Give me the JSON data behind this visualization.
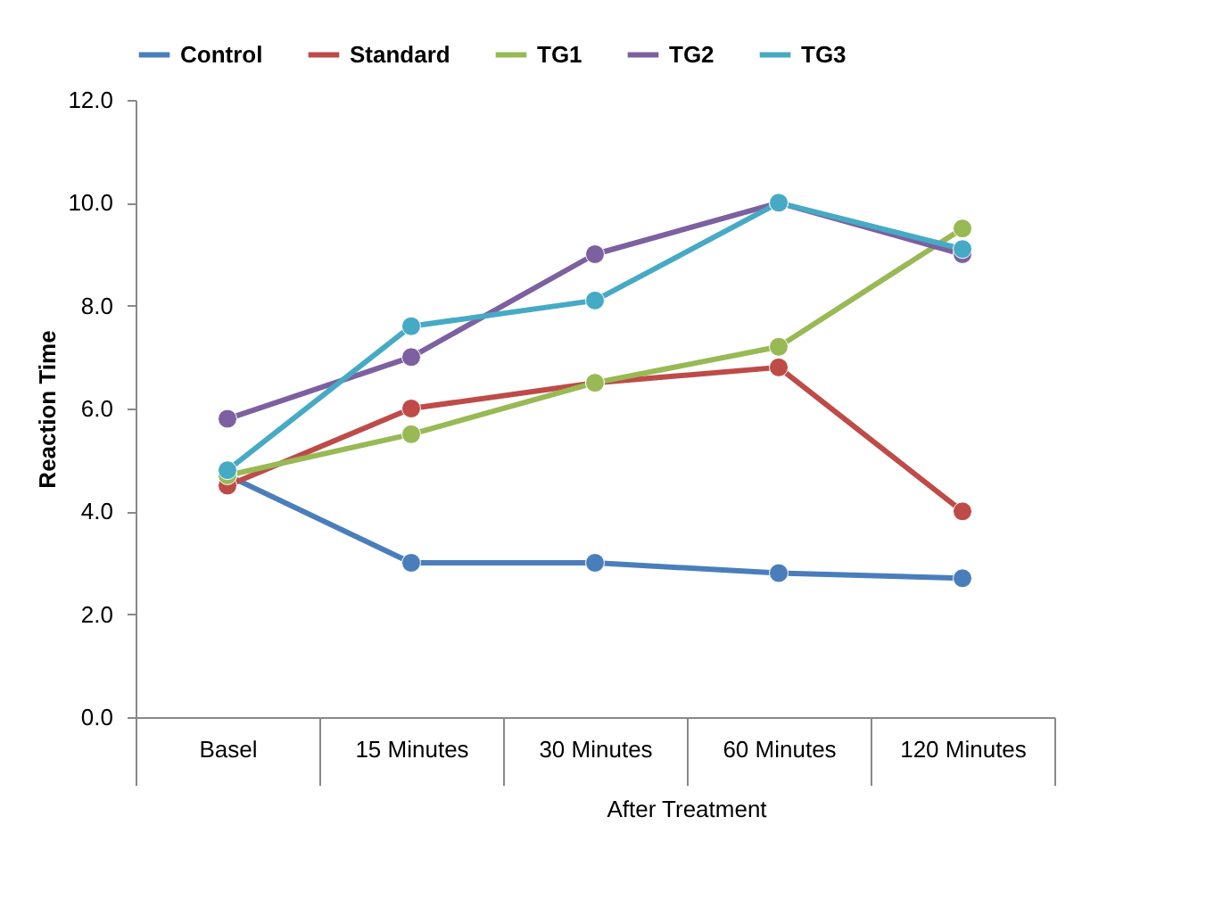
{
  "chart_data": {
    "type": "line",
    "ylabel": "Reaction Time",
    "categories": [
      "Basel",
      "15 Minutes",
      "30 Minutes",
      "60 Minutes",
      "120 Minutes"
    ],
    "annotations": [
      "After Treatment"
    ],
    "series": [
      {
        "name": "Control",
        "color": "#4a7ebb",
        "values": [
          4.7,
          3.0,
          3.0,
          2.8,
          2.7
        ]
      },
      {
        "name": "Standard",
        "color": "#be4b48",
        "values": [
          4.5,
          6.0,
          6.5,
          6.8,
          4.0
        ]
      },
      {
        "name": "TG1",
        "color": "#98b954",
        "values": [
          4.7,
          5.5,
          6.5,
          7.2,
          9.5
        ]
      },
      {
        "name": "TG2",
        "color": "#7d60a0",
        "values": [
          5.8,
          7.0,
          9.0,
          10.0,
          9.0
        ]
      },
      {
        "name": "TG3",
        "color": "#46aac5",
        "values": [
          4.8,
          7.6,
          8.1,
          10.0,
          9.1
        ]
      }
    ],
    "ylim": [
      0,
      12
    ],
    "yticks": [
      {
        "value": 0,
        "label": "0.0"
      },
      {
        "value": 2,
        "label": "2.0"
      },
      {
        "value": 4,
        "label": "4.0"
      },
      {
        "value": 6,
        "label": "6.0"
      },
      {
        "value": 8,
        "label": "8.0"
      },
      {
        "value": 10,
        "label": "10.0"
      },
      {
        "value": 12,
        "label": "12.0"
      }
    ],
    "grid": false,
    "legend": "top",
    "marker": "circle",
    "line_style": "solid"
  }
}
